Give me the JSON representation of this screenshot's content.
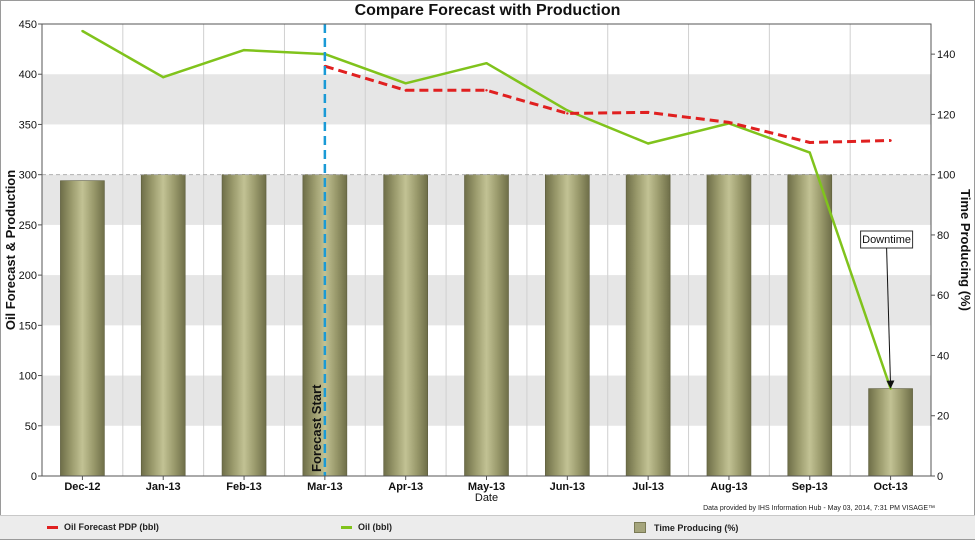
{
  "chart_data": {
    "type": "bar+line",
    "title": "Compare Forecast with Production",
    "xlabel": "Date",
    "ylabel_left": "Oil Forecast & Production",
    "ylabel_right": "Time Producing (%)",
    "ylim_left": [
      0,
      450
    ],
    "ylim_right": [
      0,
      150
    ],
    "yticks_left": [
      0,
      50,
      100,
      150,
      200,
      250,
      300,
      350,
      400,
      450
    ],
    "yticks_right": [
      0,
      20,
      40,
      60,
      80,
      100,
      120,
      140
    ],
    "categories": [
      "Dec-12",
      "Jan-13",
      "Feb-13",
      "Mar-13",
      "Apr-13",
      "May-13",
      "Jun-13",
      "Jul-13",
      "Aug-13",
      "Sep-13",
      "Oct-13"
    ],
    "series": [
      {
        "name": "Time Producing (%)",
        "type": "bar",
        "axis": "right",
        "color": "#a5a57c",
        "values": [
          98,
          100,
          100,
          100,
          100,
          100,
          100,
          100,
          100,
          100,
          29
        ]
      },
      {
        "name": "Oil (bbl)",
        "type": "line",
        "axis": "left",
        "color": "#80c31c",
        "values": [
          443,
          397,
          424,
          420,
          391,
          411,
          364,
          331,
          351,
          322,
          87
        ]
      },
      {
        "name": "Oil Forecast PDP (bbl)",
        "type": "line",
        "axis": "left",
        "color": "#e02020",
        "dash": true,
        "values": [
          null,
          null,
          null,
          408,
          384,
          384,
          361,
          362,
          352,
          332,
          334
        ]
      }
    ],
    "annotations": {
      "forecast_start": {
        "label": "Forecast Start",
        "category": "Mar-13"
      },
      "downtime": {
        "label": "Downtime",
        "category": "Oct-13"
      }
    },
    "legend_position": "bottom",
    "grid": "horizontal-bands"
  },
  "credit": "Data provided by IHS Information Hub - May 03, 2014, 7:31 PM VISAGE™",
  "legend": [
    {
      "label": "Oil Forecast PDP (bbl)",
      "color": "#e02020"
    },
    {
      "label": "Oil (bbl)",
      "color": "#80c31c"
    },
    {
      "label": "Time Producing (%)",
      "color": "#a5a57c"
    }
  ]
}
